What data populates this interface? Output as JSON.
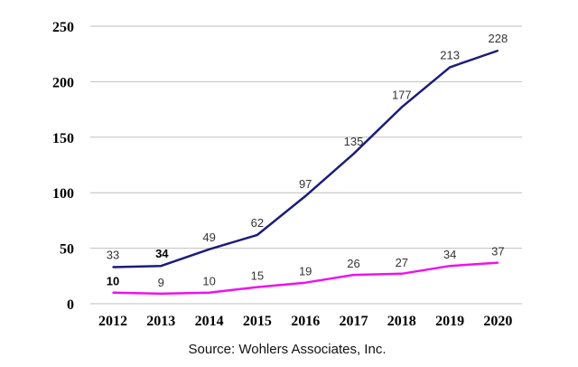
{
  "chart_data": {
    "type": "line",
    "categories": [
      "2012",
      "2013",
      "2014",
      "2015",
      "2016",
      "2017",
      "2018",
      "2019",
      "2020"
    ],
    "series": [
      {
        "values": [
          33,
          34,
          49,
          62,
          97,
          135,
          177,
          213,
          228
        ],
        "labels": [
          "33",
          "34",
          "49",
          "62",
          "97",
          "135",
          "177",
          "213",
          "228"
        ],
        "color": "#1c1c7a"
      },
      {
        "values": [
          10,
          9,
          10,
          15,
          19,
          26,
          27,
          34,
          37
        ],
        "labels": [
          "10",
          "9",
          "10",
          "15",
          "19",
          "26",
          "27",
          "34",
          "37"
        ],
        "color": "#ee11ee"
      }
    ],
    "ylim": [
      0,
      250
    ],
    "yticks": [
      "0",
      "50",
      "100",
      "150",
      "200",
      "250"
    ],
    "grid": true,
    "source": "Source: Wohlers Associates, Inc."
  }
}
